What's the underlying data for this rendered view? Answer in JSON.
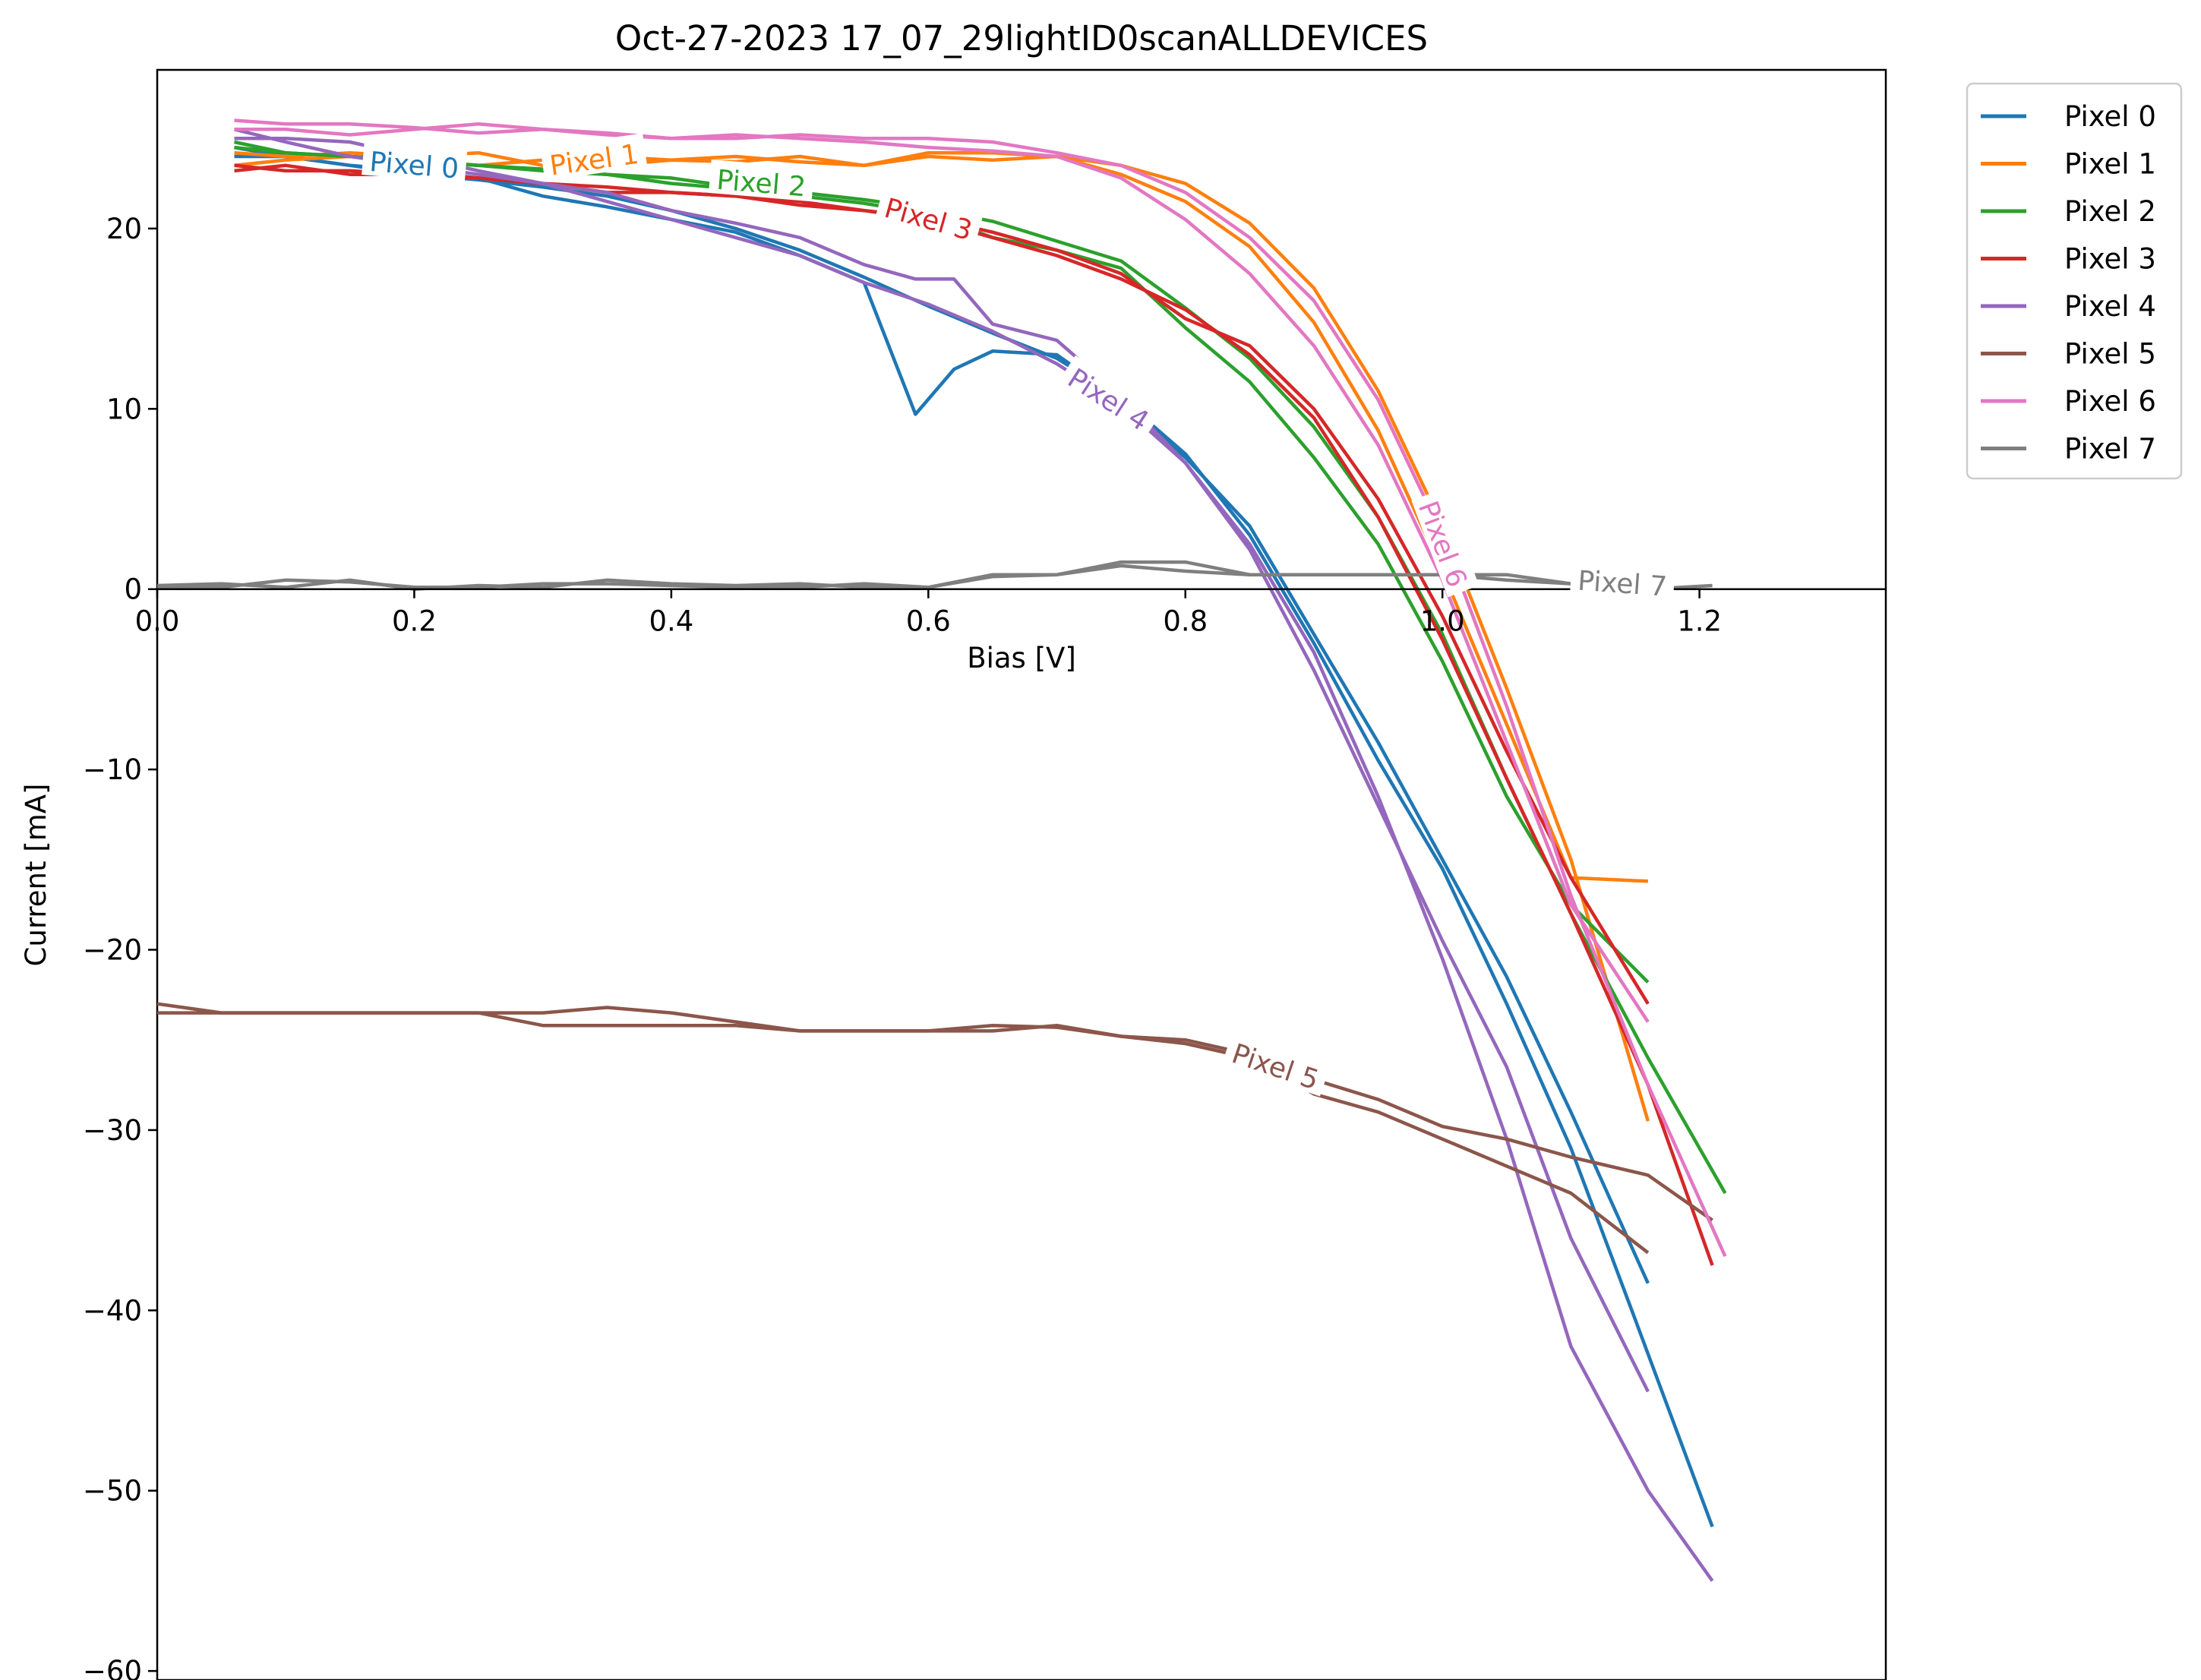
{
  "chart_data": {
    "type": "line",
    "title": "Oct-27-2023 17_07_29lightID0scanALLDEVICES",
    "xlabel": "Bias [V]",
    "ylabel": "Current [mA]",
    "xlim": [
      0.0,
      1.345
    ],
    "ylim": [
      -60.5,
      28.8
    ],
    "xticks": [
      0.0,
      0.2,
      0.4,
      0.6,
      0.8,
      1.0,
      1.2
    ],
    "xtick_labels": [
      "0.0",
      "0.2",
      "0.4",
      "0.6",
      "0.8",
      "1.0",
      "1.2"
    ],
    "yticks": [
      -60,
      -50,
      -40,
      -30,
      -20,
      -10,
      0,
      10,
      20
    ],
    "ytick_labels": [
      "−60",
      "−50",
      "−40",
      "−30",
      "−20",
      "−10",
      "0",
      "10",
      "20"
    ],
    "grid": false,
    "legend_position": "outside-top-right",
    "series": [
      {
        "name": "Pixel 0",
        "color": "#1f77b4",
        "label_at": [
          0.2,
          23.5
        ],
        "x": [
          0.06,
          0.1,
          0.15,
          0.2,
          0.25,
          0.3,
          0.35,
          0.4,
          0.45,
          0.5,
          0.55,
          0.6,
          0.65,
          0.7,
          0.75,
          0.8,
          0.85,
          0.9,
          0.95,
          1.0,
          1.05,
          1.1,
          1.15,
          1.21
        ],
        "y": [
          24.5,
          24.0,
          23.5,
          23.0,
          22.7,
          22.3,
          21.8,
          21.0,
          20.0,
          18.8,
          17.3,
          15.7,
          14.2,
          12.8,
          10.6,
          7.5,
          3.0,
          -3.0,
          -9.5,
          -15.5,
          -23.0,
          -31.0,
          -40.5,
          -52.0
        ],
        "x2": [
          0.06,
          0.1,
          0.15,
          0.2,
          0.25,
          0.3,
          0.35,
          0.4,
          0.45,
          0.5,
          0.55,
          0.59,
          0.62,
          0.65,
          0.7,
          0.75,
          0.8,
          0.85,
          0.9,
          0.95,
          1.0,
          1.05,
          1.1,
          1.16
        ],
        "y2": [
          24.0,
          24.0,
          23.5,
          23.2,
          22.8,
          21.8,
          21.2,
          20.5,
          19.8,
          18.5,
          17.0,
          9.7,
          12.2,
          13.2,
          13.0,
          10.5,
          7.3,
          3.5,
          -2.5,
          -8.5,
          -15.0,
          -21.5,
          -29.0,
          -38.5
        ]
      },
      {
        "name": "Pixel 1",
        "color": "#ff7f0e",
        "label_at": [
          0.34,
          23.8
        ],
        "x": [
          0.06,
          0.1,
          0.15,
          0.2,
          0.25,
          0.3,
          0.35,
          0.4,
          0.45,
          0.5,
          0.55,
          0.6,
          0.65,
          0.7,
          0.75,
          0.8,
          0.85,
          0.9,
          0.95,
          1.0,
          1.05,
          1.1,
          1.16
        ],
        "y": [
          24.2,
          24.0,
          24.2,
          24.0,
          24.2,
          23.5,
          24.0,
          23.8,
          24.0,
          23.7,
          23.5,
          24.2,
          24.2,
          24.0,
          23.5,
          22.5,
          20.3,
          16.7,
          11.0,
          3.5,
          -5.5,
          -15.0,
          -29.5
        ],
        "x2": [
          0.06,
          0.1,
          0.15,
          0.2,
          0.25,
          0.3,
          0.35,
          0.4,
          0.45,
          0.5,
          0.55,
          0.6,
          0.65,
          0.7,
          0.75,
          0.8,
          0.85,
          0.9,
          0.95,
          1.0,
          1.05,
          1.1,
          1.16
        ],
        "y2": [
          23.5,
          23.8,
          24.0,
          23.8,
          23.5,
          23.8,
          23.5,
          23.8,
          23.7,
          24.0,
          23.5,
          24.0,
          23.8,
          24.0,
          23.0,
          21.5,
          19.0,
          14.8,
          8.8,
          1.0,
          -7.5,
          -16.0,
          -16.2
        ]
      },
      {
        "name": "Pixel 2",
        "color": "#2ca02c",
        "label_at": [
          0.47,
          22.5
        ],
        "x": [
          0.06,
          0.1,
          0.15,
          0.2,
          0.25,
          0.3,
          0.35,
          0.4,
          0.45,
          0.5,
          0.55,
          0.6,
          0.65,
          0.7,
          0.75,
          0.8,
          0.85,
          0.9,
          0.95,
          1.0,
          1.05,
          1.1,
          1.16,
          1.22
        ],
        "y": [
          24.8,
          24.2,
          24.0,
          23.8,
          23.5,
          23.3,
          23.0,
          22.8,
          22.3,
          22.0,
          21.6,
          21.1,
          20.4,
          19.3,
          18.2,
          15.6,
          12.8,
          9.0,
          4.0,
          -2.5,
          -10.5,
          -18.0,
          -26.0,
          -33.5
        ],
        "x2": [
          0.06,
          0.1,
          0.15,
          0.2,
          0.25,
          0.3,
          0.35,
          0.4,
          0.45,
          0.5,
          0.55,
          0.6,
          0.65,
          0.7,
          0.75,
          0.8,
          0.85,
          0.9,
          0.95,
          1.0,
          1.05,
          1.1,
          1.16
        ],
        "y2": [
          24.5,
          24.2,
          24.0,
          23.7,
          23.5,
          23.2,
          23.0,
          22.5,
          22.2,
          21.8,
          21.4,
          20.8,
          19.5,
          18.8,
          17.8,
          14.5,
          11.5,
          7.3,
          2.5,
          -4.0,
          -11.5,
          -17.5,
          -21.8
        ]
      },
      {
        "name": "Pixel 3",
        "color": "#d62728",
        "label_at": [
          0.6,
          20.5
        ],
        "x": [
          0.06,
          0.1,
          0.15,
          0.2,
          0.25,
          0.3,
          0.35,
          0.4,
          0.45,
          0.5,
          0.55,
          0.6,
          0.65,
          0.7,
          0.75,
          0.8,
          0.85,
          0.9,
          0.95,
          1.0,
          1.05,
          1.1,
          1.16,
          1.21
        ],
        "y": [
          23.2,
          23.5,
          23.0,
          23.0,
          22.8,
          22.5,
          22.3,
          22.0,
          21.8,
          21.5,
          21.0,
          20.5,
          19.5,
          18.5,
          17.2,
          15.5,
          13.0,
          9.5,
          4.0,
          -2.8,
          -10.5,
          -18.0,
          -27.5,
          -37.5
        ],
        "x2": [
          0.06,
          0.1,
          0.15,
          0.2,
          0.25,
          0.3,
          0.35,
          0.4,
          0.45,
          0.5,
          0.55,
          0.6,
          0.65,
          0.7,
          0.75,
          0.8,
          0.85,
          0.9,
          0.95,
          1.0,
          1.05,
          1.1,
          1.16
        ],
        "y2": [
          23.5,
          23.2,
          23.2,
          23.0,
          22.8,
          22.5,
          22.0,
          22.0,
          21.8,
          21.3,
          21.0,
          20.6,
          19.8,
          18.8,
          17.5,
          15.0,
          13.5,
          10.0,
          5.0,
          -1.5,
          -9.0,
          -16.0,
          -23.0
        ]
      },
      {
        "name": "Pixel 4",
        "color": "#9467bd",
        "label_at": [
          0.74,
          10.5
        ],
        "x": [
          0.06,
          0.1,
          0.15,
          0.2,
          0.25,
          0.3,
          0.35,
          0.4,
          0.45,
          0.5,
          0.55,
          0.6,
          0.65,
          0.7,
          0.75,
          0.8,
          0.85,
          0.9,
          0.95,
          1.0,
          1.05,
          1.1,
          1.16,
          1.21
        ],
        "y": [
          25.5,
          24.8,
          24.0,
          23.5,
          23.0,
          22.5,
          21.5,
          20.5,
          19.5,
          18.5,
          17.0,
          15.8,
          14.3,
          12.5,
          10.2,
          7.0,
          2.5,
          -3.5,
          -11.5,
          -20.5,
          -30.5,
          -42.0,
          -50.0,
          -55.0
        ],
        "x2": [
          0.06,
          0.1,
          0.15,
          0.2,
          0.25,
          0.3,
          0.35,
          0.4,
          0.45,
          0.5,
          0.55,
          0.59,
          0.62,
          0.65,
          0.7,
          0.75,
          0.8,
          0.85,
          0.9,
          0.95,
          1.0,
          1.05,
          1.1,
          1.16
        ],
        "y2": [
          25.0,
          25.0,
          24.8,
          24.0,
          23.2,
          22.5,
          22.0,
          21.0,
          20.3,
          19.5,
          18.0,
          17.2,
          17.2,
          14.7,
          13.8,
          10.7,
          7.0,
          2.2,
          -4.5,
          -12.0,
          -19.5,
          -26.5,
          -36.0,
          -44.5
        ]
      },
      {
        "name": "Pixel 5",
        "color": "#8c564b",
        "label_at": [
          0.87,
          -26.5
        ],
        "x": [
          0.0,
          0.05,
          0.1,
          0.15,
          0.2,
          0.25,
          0.3,
          0.35,
          0.4,
          0.45,
          0.5,
          0.55,
          0.6,
          0.65,
          0.7,
          0.75,
          0.8,
          0.85,
          0.9,
          0.95,
          1.0,
          1.05,
          1.1,
          1.16,
          1.21
        ],
        "y": [
          -23.5,
          -23.5,
          -23.5,
          -23.5,
          -23.5,
          -23.5,
          -23.5,
          -23.2,
          -23.5,
          -24.0,
          -24.5,
          -24.5,
          -24.5,
          -24.2,
          -24.3,
          -24.8,
          -25.2,
          -26.0,
          -27.2,
          -28.3,
          -29.8,
          -30.5,
          -31.5,
          -32.5,
          -35.0
        ],
        "x2": [
          0.0,
          0.05,
          0.1,
          0.15,
          0.2,
          0.25,
          0.3,
          0.35,
          0.4,
          0.45,
          0.5,
          0.55,
          0.6,
          0.65,
          0.7,
          0.75,
          0.8,
          0.85,
          0.9,
          0.95,
          1.0,
          1.05,
          1.1,
          1.16
        ],
        "y2": [
          -23.0,
          -23.5,
          -23.5,
          -23.5,
          -23.5,
          -23.5,
          -24.2,
          -24.2,
          -24.2,
          -24.2,
          -24.5,
          -24.5,
          -24.5,
          -24.5,
          -24.2,
          -24.8,
          -25.0,
          -25.8,
          -28.0,
          -29.0,
          -30.5,
          -32.0,
          -33.5,
          -36.8
        ]
      },
      {
        "name": "Pixel 6",
        "color": "#e377c2",
        "label_at": [
          1.0,
          2.5
        ],
        "x": [
          0.06,
          0.1,
          0.15,
          0.2,
          0.25,
          0.3,
          0.35,
          0.4,
          0.45,
          0.5,
          0.55,
          0.6,
          0.65,
          0.7,
          0.75,
          0.8,
          0.85,
          0.9,
          0.95,
          1.0,
          1.05,
          1.1,
          1.16,
          1.22
        ],
        "y": [
          26.0,
          25.8,
          25.8,
          25.6,
          25.3,
          25.5,
          25.2,
          25.0,
          25.0,
          25.2,
          25.0,
          25.0,
          24.8,
          24.2,
          23.5,
          22.0,
          19.5,
          16.0,
          10.5,
          3.0,
          -6.5,
          -17.0,
          -27.5,
          -37.0
        ],
        "x2": [
          0.06,
          0.1,
          0.15,
          0.2,
          0.25,
          0.3,
          0.35,
          0.4,
          0.45,
          0.5,
          0.55,
          0.6,
          0.65,
          0.7,
          0.75,
          0.8,
          0.85,
          0.9,
          0.95,
          1.0,
          1.05,
          1.1,
          1.16
        ],
        "y2": [
          25.5,
          25.5,
          25.2,
          25.5,
          25.8,
          25.5,
          25.3,
          25.0,
          25.2,
          25.0,
          24.8,
          24.5,
          24.3,
          24.0,
          22.8,
          20.5,
          17.5,
          13.5,
          8.0,
          0.5,
          -8.5,
          -17.5,
          -24.0
        ]
      },
      {
        "name": "Pixel 7",
        "color": "#7f7f7f",
        "label_at": [
          1.14,
          0.3
        ],
        "x": [
          0.0,
          0.05,
          0.1,
          0.15,
          0.2,
          0.25,
          0.3,
          0.35,
          0.4,
          0.45,
          0.5,
          0.55,
          0.6,
          0.65,
          0.7,
          0.75,
          0.8,
          0.85,
          0.9,
          0.95,
          1.0,
          1.05,
          1.1,
          1.16,
          1.21
        ],
        "y": [
          0.2,
          0.3,
          0.1,
          0.5,
          0.0,
          0.2,
          0.1,
          0.5,
          0.3,
          0.2,
          0.3,
          0.1,
          0.1,
          0.8,
          0.8,
          1.5,
          1.5,
          0.8,
          0.8,
          0.8,
          0.8,
          0.8,
          0.3,
          0.0,
          0.2
        ],
        "x2": [
          0.0,
          0.05,
          0.1,
          0.15,
          0.2,
          0.25,
          0.3,
          0.35,
          0.4,
          0.45,
          0.5,
          0.55,
          0.6,
          0.65,
          0.7,
          0.75,
          0.8,
          0.85,
          0.9,
          0.95,
          1.0,
          1.05,
          1.1
        ],
        "y2": [
          0.1,
          0.1,
          0.5,
          0.4,
          0.1,
          0.1,
          0.3,
          0.3,
          0.2,
          0.1,
          0.1,
          0.3,
          0.1,
          0.7,
          0.8,
          1.3,
          1.0,
          0.8,
          0.8,
          0.8,
          0.8,
          0.5,
          0.3
        ]
      }
    ]
  }
}
